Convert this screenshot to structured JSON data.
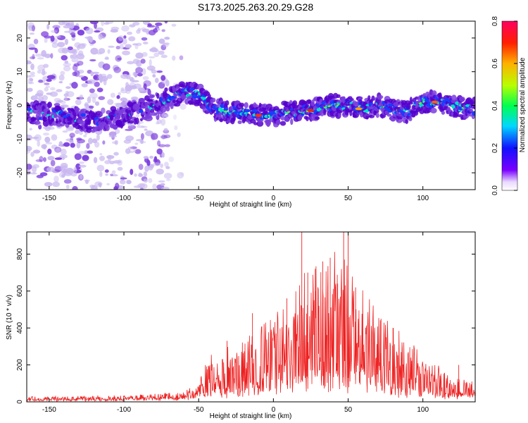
{
  "title": "S173.2025.263.20.29.G28",
  "colors": {
    "spec_light": "#c9b8f0",
    "spec_mid": "#7b3cde",
    "spec_dark": "#5500cc",
    "snr_line": "#ee2222"
  },
  "chart_data": [
    {
      "type": "heatmap",
      "name": "spectrogram",
      "xlabel": "Height of straight line (km)",
      "ylabel": "Frequency (Hz)",
      "xlim": [
        -165,
        135
      ],
      "ylim": [
        -25,
        25
      ],
      "x_ticks": [
        -150,
        -100,
        -50,
        0,
        50,
        100
      ],
      "y_ticks": [
        -20,
        -10,
        0,
        10,
        20
      ],
      "ridge": {
        "description_points_x": [
          -165,
          -140,
          -120,
          -100,
          -85,
          -70,
          -60,
          -50,
          -40,
          -30,
          -20,
          -10,
          0,
          10,
          20,
          30,
          40,
          50,
          60,
          70,
          80,
          90,
          100,
          110,
          120,
          130,
          135
        ],
        "freq_hz": [
          -2,
          -3,
          -5,
          -3,
          -1,
          2,
          4,
          3,
          -1,
          -2,
          -2,
          -3,
          -3,
          -2,
          -2,
          -1,
          0,
          0,
          -1,
          0,
          -1,
          -2,
          1,
          1,
          0,
          -1,
          -1
        ]
      },
      "colorbar": {
        "label": "Normalized spectral amplitude",
        "range": [
          0,
          0.8
        ],
        "ticks": [
          "0.0",
          "0.2",
          "0.4",
          "0.6",
          "0.8"
        ],
        "colors": [
          "#ffffff",
          "#7a00ff",
          "#0000ff",
          "#00d8ff",
          "#00ff40",
          "#c8ff00",
          "#ff8000",
          "#ff0000",
          "#ff0060"
        ]
      }
    },
    {
      "type": "line",
      "name": "snr",
      "xlabel": "Height of straight line (km)",
      "ylabel": "SNR (10 * v/v)",
      "xlim": [
        -165,
        135
      ],
      "ylim": [
        0,
        920
      ],
      "x_ticks": [
        -150,
        -100,
        -50,
        0,
        50,
        100
      ],
      "y_ticks": [
        0,
        200,
        400,
        600,
        800
      ],
      "envelope": {
        "x": [
          -165,
          -140,
          -120,
          -100,
          -80,
          -60,
          -50,
          -45,
          -40,
          -30,
          -20,
          -10,
          0,
          10,
          20,
          30,
          40,
          50,
          60,
          70,
          80,
          90,
          100,
          110,
          120,
          130,
          135
        ],
        "upper": [
          30,
          30,
          35,
          35,
          45,
          60,
          100,
          260,
          270,
          300,
          360,
          420,
          480,
          560,
          700,
          800,
          820,
          780,
          620,
          480,
          420,
          340,
          260,
          200,
          150,
          120,
          110
        ],
        "lower": [
          10,
          10,
          10,
          12,
          15,
          20,
          30,
          40,
          50,
          60,
          70,
          80,
          90,
          110,
          120,
          140,
          140,
          130,
          110,
          90,
          70,
          60,
          50,
          40,
          40,
          40,
          40
        ]
      },
      "peaks": [
        {
          "x": 19,
          "y": 920
        },
        {
          "x": 23,
          "y": 700
        },
        {
          "x": 28,
          "y": 720
        },
        {
          "x": 33,
          "y": 760
        },
        {
          "x": 38,
          "y": 780
        },
        {
          "x": 47,
          "y": 920
        },
        {
          "x": 50,
          "y": 920
        },
        {
          "x": 43,
          "y": 640
        },
        {
          "x": 55,
          "y": 620
        },
        {
          "x": 9,
          "y": 560
        },
        {
          "x": -14,
          "y": 480
        },
        {
          "x": -31,
          "y": 330
        },
        {
          "x": 72,
          "y": 450
        },
        {
          "x": 80,
          "y": 400
        },
        {
          "x": 124,
          "y": 200
        }
      ]
    }
  ]
}
